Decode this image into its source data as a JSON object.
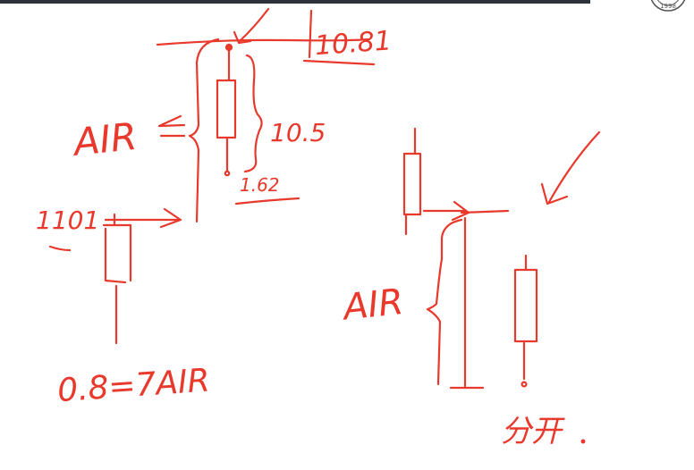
{
  "colors": {
    "ink": "#e8392c",
    "bar": "#2d3138",
    "logo": "#555555"
  },
  "logo": {
    "year": "1998"
  },
  "annotations": {
    "top_value": "10.81",
    "range_value": "10.5",
    "low_value": "1.62",
    "left_value": "1101",
    "air_left": "AIR",
    "air_middle": "AIR",
    "bottom_formula": "0.8=7AIR",
    "han_chars": "分开"
  }
}
